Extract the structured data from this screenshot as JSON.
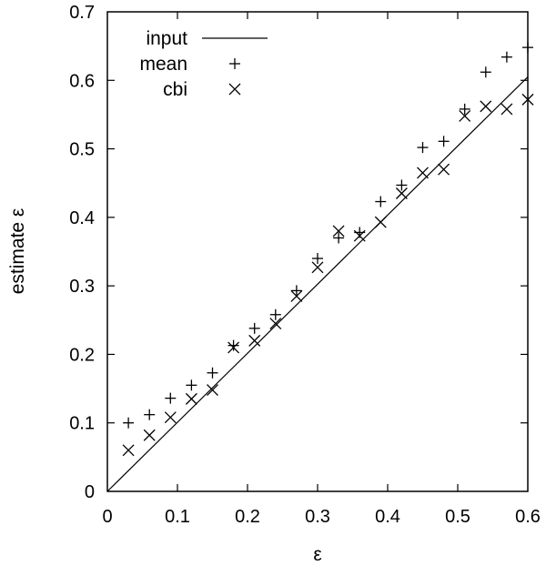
{
  "chart_data": {
    "type": "scatter",
    "title": "",
    "xlabel": "ε",
    "ylabel": "estimate ε",
    "xlim": [
      0,
      0.6
    ],
    "ylim": [
      0,
      0.7
    ],
    "xticks": [
      "0",
      "0.1",
      "0.2",
      "0.3",
      "0.4",
      "0.5",
      "0.6"
    ],
    "yticks": [
      "0",
      "0.1",
      "0.2",
      "0.3",
      "0.4",
      "0.5",
      "0.6",
      "0.7"
    ],
    "grid": false,
    "legend_position": "top-left",
    "series": [
      {
        "name": "input",
        "style": "line",
        "x": [
          0,
          0.6
        ],
        "y": [
          0,
          0.605
        ]
      },
      {
        "name": "mean",
        "style": "plus",
        "x": [
          0.03,
          0.06,
          0.09,
          0.12,
          0.15,
          0.18,
          0.21,
          0.24,
          0.27,
          0.3,
          0.33,
          0.36,
          0.39,
          0.42,
          0.45,
          0.48,
          0.51,
          0.54,
          0.57,
          0.6
        ],
        "y": [
          0.1,
          0.112,
          0.136,
          0.155,
          0.173,
          0.213,
          0.238,
          0.258,
          0.293,
          0.34,
          0.37,
          0.378,
          0.423,
          0.447,
          0.502,
          0.511,
          0.558,
          0.612,
          0.634,
          0.648
        ]
      },
      {
        "name": "cbi",
        "style": "cross",
        "x": [
          0.03,
          0.06,
          0.09,
          0.12,
          0.15,
          0.18,
          0.21,
          0.24,
          0.27,
          0.3,
          0.33,
          0.36,
          0.39,
          0.42,
          0.45,
          0.48,
          0.51,
          0.54,
          0.57,
          0.6
        ],
        "y": [
          0.06,
          0.082,
          0.108,
          0.135,
          0.148,
          0.21,
          0.22,
          0.245,
          0.285,
          0.327,
          0.38,
          0.373,
          0.393,
          0.435,
          0.465,
          0.47,
          0.548,
          0.562,
          0.558,
          0.572
        ]
      }
    ]
  }
}
